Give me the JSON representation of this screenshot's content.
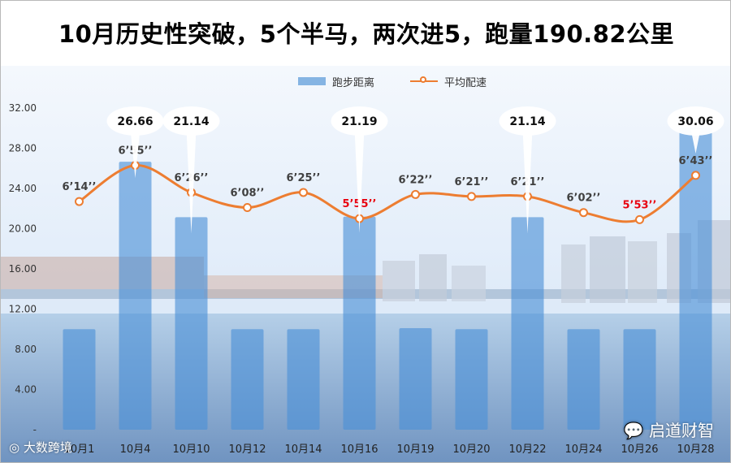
{
  "chart_data": {
    "type": "bar",
    "title": "10月历史性突破，5个半马，两次进5，跑量190.82公里",
    "categories": [
      "10月1",
      "10月4",
      "10月10",
      "10月12",
      "10月14",
      "10月16",
      "10月19",
      "10月20",
      "10月22",
      "10月24",
      "10月26",
      "10月28"
    ],
    "y_ticks": [
      "32.00",
      "28.00",
      "24.00",
      "20.00",
      "16.00",
      "12.00",
      "8.00",
      "4.00",
      "-"
    ],
    "ylim": [
      0,
      32
    ],
    "grid": false,
    "legend_position": "top",
    "series": [
      {
        "name": "跑步距离",
        "type": "bar",
        "values": [
          10.0,
          26.66,
          21.14,
          10.0,
          10.0,
          21.19,
          10.1,
          10.0,
          21.14,
          10.0,
          10.0,
          30.06
        ]
      },
      {
        "name": "平均配速",
        "type": "line",
        "values": [
          22.7,
          26.3,
          23.6,
          22.1,
          23.6,
          21.0,
          23.4,
          23.2,
          23.2,
          21.6,
          20.9,
          25.3
        ],
        "labels": [
          "6’14’’",
          "6’55’’",
          "6’26’’",
          "6’08’’",
          "6’25’’",
          "5’55’’",
          "6’22’’",
          "6’21’’",
          "6’21’’",
          "6’02’’",
          "5’53’’",
          "6’43’’"
        ],
        "highlight_indices": [
          5,
          10
        ]
      }
    ],
    "callouts": [
      {
        "index": 1,
        "text": "26.66"
      },
      {
        "index": 2,
        "text": "21.14"
      },
      {
        "index": 5,
        "text": "21.19"
      },
      {
        "index": 8,
        "text": "21.14"
      },
      {
        "index": 11,
        "text": "30.06"
      }
    ],
    "colors": {
      "bar": "#4a90d6",
      "line": "#ed7d31",
      "highlight_label": "#e8000e",
      "label": "#404040"
    }
  },
  "watermarks": {
    "right": "启道财智",
    "left": "大数跨境"
  }
}
